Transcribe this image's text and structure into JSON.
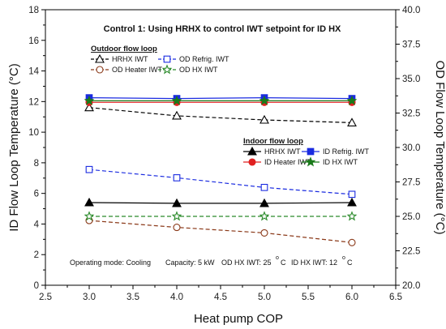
{
  "chart_data": {
    "type": "line",
    "title": "Control 1: Using HRHX to control IWT setpoint for ID HX",
    "xlabel": "Heat pump COP",
    "ylabel": "ID Flow Loop Temperature (°C)",
    "y2label": "OD Flow Loop Temperature (°C)",
    "xlim": [
      2.5,
      6.5
    ],
    "ylim": [
      0,
      18
    ],
    "y2lim": [
      20,
      40
    ],
    "xticks": [
      "2.5",
      "3.0",
      "3.5",
      "4.0",
      "4.5",
      "5.0",
      "5.5",
      "6.0",
      "6.5"
    ],
    "yticks": [
      "0",
      "2",
      "4",
      "6",
      "8",
      "10",
      "12",
      "14",
      "16",
      "18"
    ],
    "y2ticks": [
      "20.0",
      "22.5",
      "25.0",
      "27.5",
      "30.0",
      "32.5",
      "35.0",
      "37.5",
      "40.0"
    ],
    "x": [
      3.0,
      4.0,
      5.0,
      6.0
    ],
    "grid": false,
    "legends": [
      {
        "title": "Outdoor flow loop",
        "placement": "top-left",
        "entries": [
          {
            "label": "HRHX IWT",
            "series": "od_hrhx"
          },
          {
            "label": "OD Refrig. IWT",
            "series": "od_refrig"
          },
          {
            "label": "OD Heater IWT",
            "series": "od_heater"
          },
          {
            "label": "OD HX IWT",
            "series": "od_hx"
          }
        ]
      },
      {
        "title": "Indoor flow loop",
        "placement": "center-right",
        "entries": [
          {
            "label": "HRHX IWT",
            "series": "id_hrhx"
          },
          {
            "label": "ID Refrig. IWT",
            "series": "id_refrig"
          },
          {
            "label": "ID Heater IWT",
            "series": "id_heater"
          },
          {
            "label": "ID HX IWT",
            "series": "id_hx"
          }
        ]
      }
    ],
    "series": [
      {
        "id": "od_hrhx",
        "name": "HRHX IWT",
        "loop": "Outdoor",
        "axis": "right",
        "values": [
          32.9,
          32.3,
          32.0,
          31.8
        ],
        "color": "#000000",
        "marker": "triangle-open",
        "dash": true
      },
      {
        "id": "od_refrig",
        "name": "OD Refrig. IWT",
        "loop": "Outdoor",
        "axis": "right",
        "values": [
          28.4,
          27.8,
          27.1,
          26.6
        ],
        "color": "#1a2be0",
        "marker": "square-open",
        "dash": true
      },
      {
        "id": "od_heater",
        "name": "OD Heater IWT",
        "loop": "Outdoor",
        "axis": "right",
        "values": [
          24.7,
          24.2,
          23.8,
          23.1
        ],
        "color": "#8b3a1a",
        "marker": "circle-open",
        "dash": true
      },
      {
        "id": "od_hx",
        "name": "OD HX IWT",
        "loop": "Outdoor",
        "axis": "right",
        "values": [
          25.0,
          25.0,
          25.0,
          25.0
        ],
        "color": "#2a8a2a",
        "marker": "star-open",
        "dash": true
      },
      {
        "id": "id_hrhx",
        "name": "HRHX IWT",
        "loop": "Indoor",
        "axis": "left",
        "values": [
          5.4,
          5.35,
          5.35,
          5.4
        ],
        "color": "#000000",
        "marker": "triangle-filled",
        "dash": false
      },
      {
        "id": "id_refrig",
        "name": "ID Refrig. IWT",
        "loop": "Indoor",
        "axis": "left",
        "values": [
          12.25,
          12.2,
          12.25,
          12.2
        ],
        "color": "#1a2be0",
        "marker": "square-filled",
        "dash": false
      },
      {
        "id": "id_heater",
        "name": "ID Heater IWT",
        "loop": "Indoor",
        "axis": "left",
        "values": [
          11.95,
          11.95,
          11.95,
          11.95
        ],
        "color": "#e02020",
        "marker": "circle-filled",
        "dash": false
      },
      {
        "id": "id_hx",
        "name": "ID HX IWT",
        "loop": "Indoor",
        "axis": "left",
        "values": [
          12.05,
          12.05,
          12.05,
          12.05
        ],
        "color": "#1a7a1a",
        "marker": "star-filled",
        "dash": false
      }
    ],
    "annotation": {
      "operating_mode": "Operating mode: Cooling",
      "capacity": "Capacity: 5 kW",
      "od_hx_iwt_label": "OD HX IWT: 25",
      "id_hx_iwt_label": "ID HX IWT: 12",
      "degree_sup": "o",
      "degree_unit": "C"
    }
  }
}
